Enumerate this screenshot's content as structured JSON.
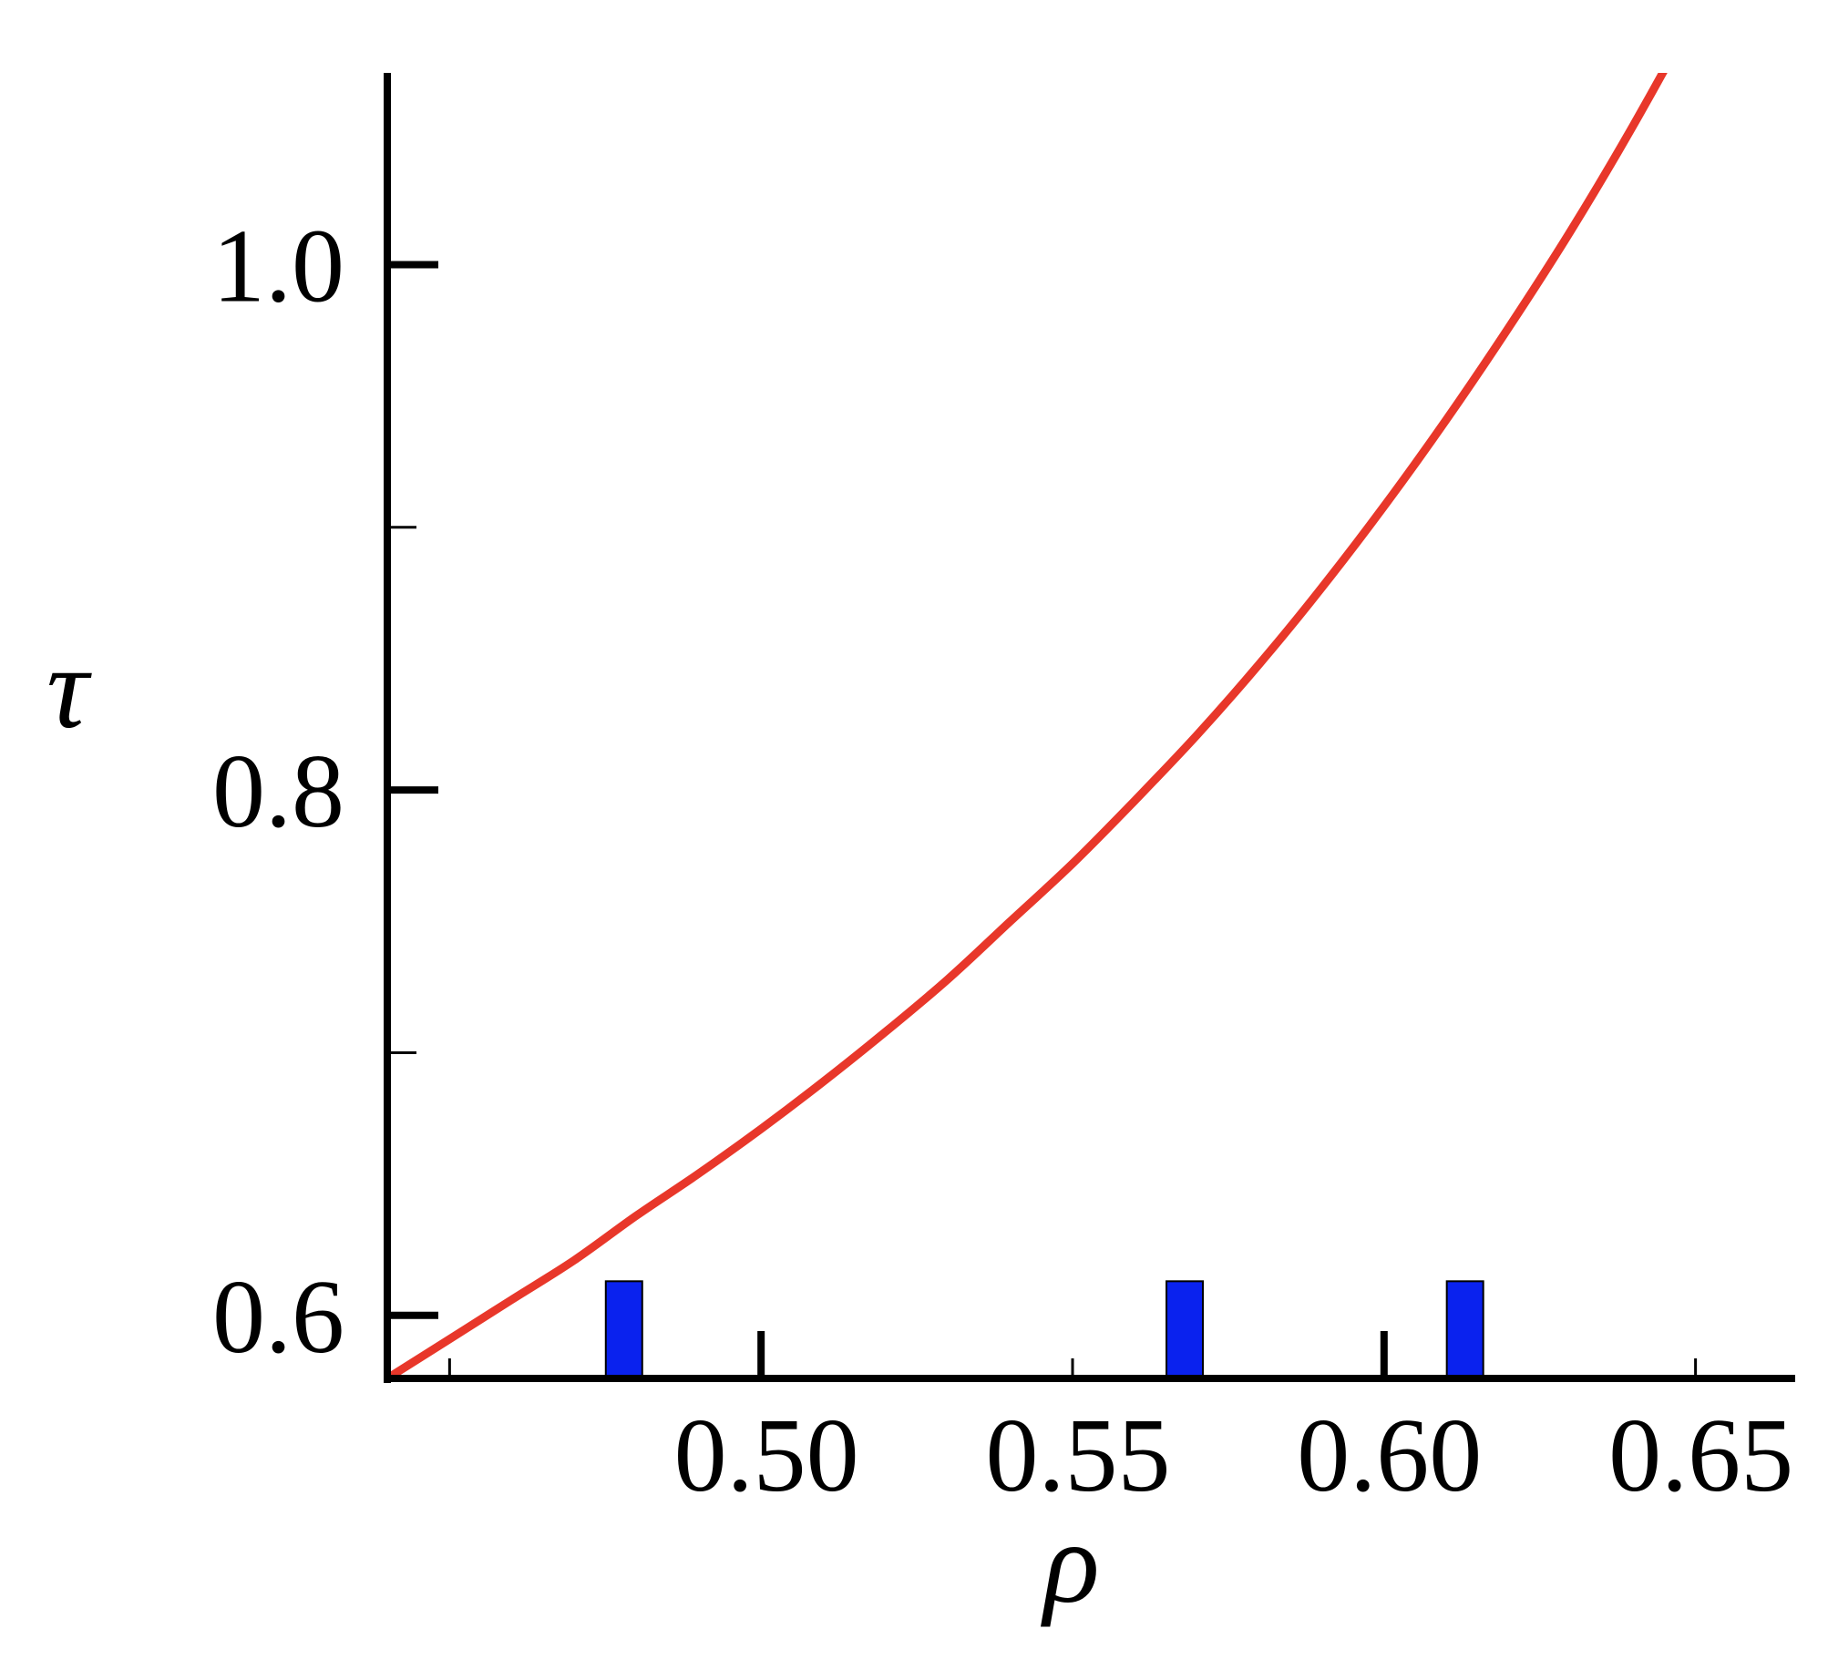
{
  "chart_data": {
    "type": "line",
    "title": "",
    "xlabel": "ρ",
    "ylabel": "τ",
    "xlim": [
      0.44,
      0.666
    ],
    "ylim": [
      0.576,
      1.073
    ],
    "x_ticks": [
      0.45,
      0.5,
      0.55,
      0.6,
      0.65
    ],
    "x_tick_labels": [
      "",
      "0.50",
      "0.55",
      "0.60",
      "0.65"
    ],
    "y_ticks": [
      0.6,
      0.7,
      0.8,
      0.9,
      1.0
    ],
    "y_tick_labels": [
      "0.6",
      "",
      "0.8",
      "",
      "1.0"
    ],
    "grid": false,
    "legend": "none",
    "series": [
      {
        "x": [
          0.44,
          0.45,
          0.46,
          0.47,
          0.48,
          0.49,
          0.5,
          0.51,
          0.52,
          0.53,
          0.54,
          0.55,
          0.56,
          0.57,
          0.58,
          0.59,
          0.6,
          0.61,
          0.62,
          0.63,
          0.64,
          0.65,
          0.66
        ],
        "y": [
          0.576,
          0.591,
          0.606,
          0.621,
          0.638,
          0.654,
          0.671,
          0.689,
          0.708,
          0.728,
          0.75,
          0.772,
          0.796,
          0.821,
          0.848,
          0.877,
          0.908,
          0.941,
          0.976,
          1.013,
          1.053,
          1.096,
          1.142
        ],
        "color": "#e8372a"
      }
    ],
    "markers": [
      {
        "x": 0.478,
        "y_top": 0.613,
        "color": "#0a22ee"
      },
      {
        "x": 0.568,
        "y_top": 0.613,
        "color": "#0a22ee"
      },
      {
        "x": 0.613,
        "y_top": 0.613,
        "color": "#0a22ee"
      }
    ]
  }
}
